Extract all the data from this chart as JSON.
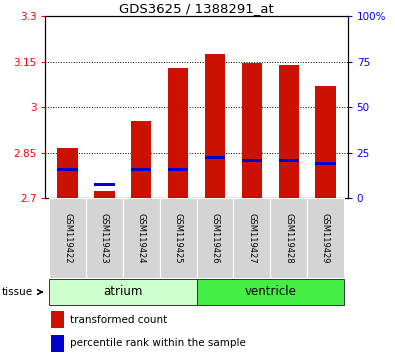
{
  "title": "GDS3625 / 1388291_at",
  "samples": [
    "GSM119422",
    "GSM119423",
    "GSM119424",
    "GSM119425",
    "GSM119426",
    "GSM119427",
    "GSM119428",
    "GSM119429"
  ],
  "bar_values": [
    2.865,
    2.725,
    2.955,
    3.13,
    3.175,
    3.145,
    3.14,
    3.07
  ],
  "percentile_values": [
    2.795,
    2.745,
    2.795,
    2.795,
    2.835,
    2.825,
    2.825,
    2.815
  ],
  "bar_color": "#cc1100",
  "percentile_color": "#0000cc",
  "y_min": 2.7,
  "y_max": 3.3,
  "y_ticks": [
    2.7,
    2.85,
    3.0,
    3.15,
    3.3
  ],
  "y_tick_labels": [
    "2.7",
    "2.85",
    "3",
    "3.15",
    "3.3"
  ],
  "right_y_ticks": [
    0,
    25,
    50,
    75,
    100
  ],
  "right_y_tick_labels": [
    "0",
    "25",
    "50",
    "75",
    "100%"
  ],
  "groups": [
    {
      "label": "atrium",
      "start": 0,
      "end": 3,
      "color": "#ccffcc"
    },
    {
      "label": "ventricle",
      "start": 4,
      "end": 7,
      "color": "#44ee44"
    }
  ],
  "tissue_label": "tissue",
  "legend_items": [
    {
      "label": "transformed count",
      "color": "#cc1100"
    },
    {
      "label": "percentile rank within the sample",
      "color": "#0000cc"
    }
  ],
  "bar_width": 0.55
}
